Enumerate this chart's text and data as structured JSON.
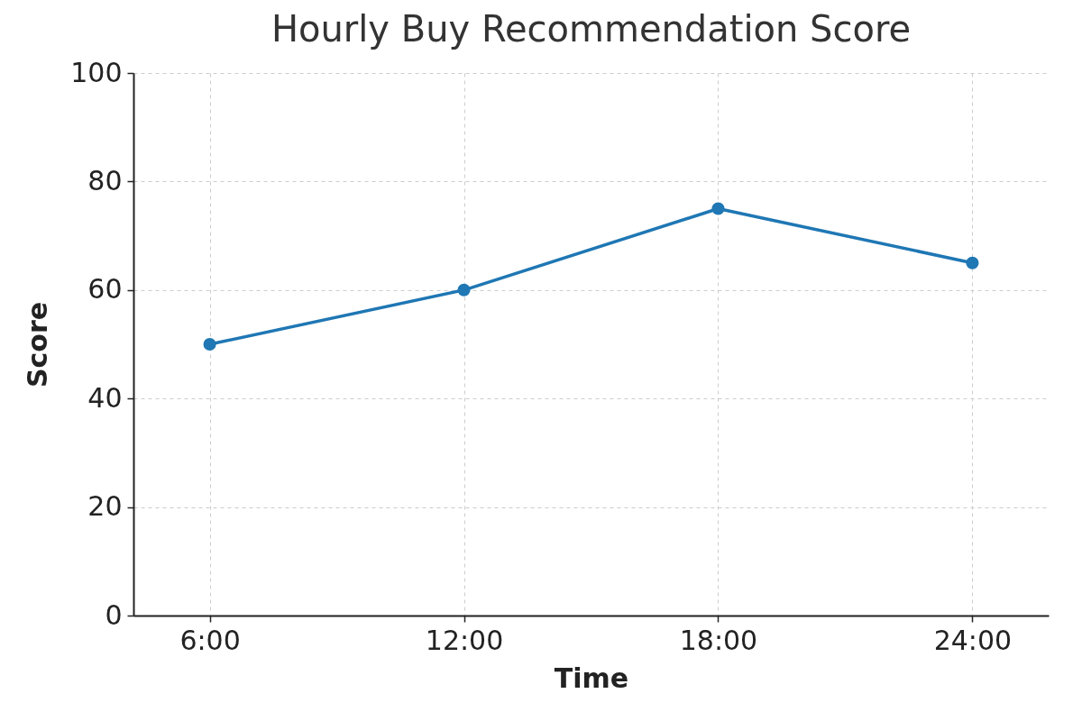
{
  "chart_data": {
    "type": "line",
    "title": "Hourly Buy Recommendation Score",
    "xlabel": "Time",
    "ylabel": "Score",
    "categories": [
      "6:00",
      "12:00",
      "18:00",
      "24:00"
    ],
    "series": [
      {
        "color": "#1f77b4",
        "values": [
          50,
          60,
          75,
          65
        ]
      }
    ],
    "ylim": [
      0,
      100
    ],
    "yticks": [
      0,
      20,
      40,
      60,
      80,
      100
    ],
    "grid": true,
    "marker": "circle",
    "line_style": "solid"
  }
}
